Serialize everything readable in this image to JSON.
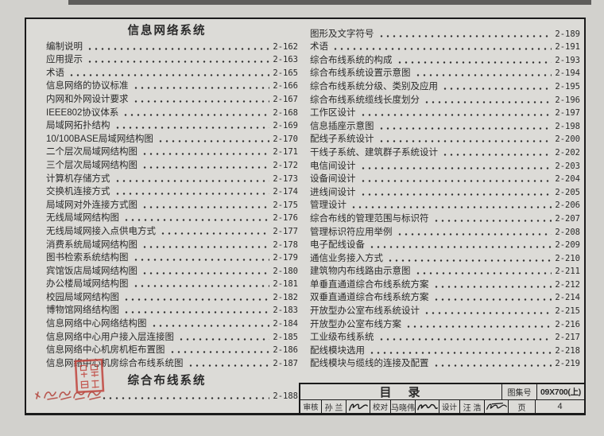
{
  "colors": {
    "ink": "#2a2a2a",
    "paper": "#dcdbd7",
    "margin": "#d2d1cd",
    "seal_red": "#c0453e",
    "frame": "#1b1b1b"
  },
  "left_column": {
    "sections": [
      {
        "header": "信息网络系统",
        "entries": [
          {
            "label": "编制说明",
            "page": "2-162"
          },
          {
            "label": "应用提示",
            "page": "2-163"
          },
          {
            "label": "术语",
            "page": "2-165"
          },
          {
            "label": "信息网络的协议标准",
            "page": "2-166"
          },
          {
            "label": "内网和外网设计要求",
            "page": "2-167"
          },
          {
            "label": "IEEE802协议体系",
            "page": "2-168"
          },
          {
            "label": "局域网拓扑结构",
            "page": "2-169"
          },
          {
            "label": "10/100BASE局域网结构图",
            "page": "2-170"
          },
          {
            "label": "二个层次局域网结构图",
            "page": "2-171"
          },
          {
            "label": "三个层次局域网结构图",
            "page": "2-172"
          },
          {
            "label": "计算机存储方式",
            "page": "2-173"
          },
          {
            "label": "交换机连接方式",
            "page": "2-174"
          },
          {
            "label": "局域网对外连接方式图",
            "page": "2-175"
          },
          {
            "label": "无线局域网结构图",
            "page": "2-176"
          },
          {
            "label": "无线局域网接入点供电方式",
            "page": "2-177"
          },
          {
            "label": "消费系统局域网结构图",
            "page": "2-178"
          },
          {
            "label": "图书检索系统结构图",
            "page": "2-179"
          },
          {
            "label": "宾馆饭店局域网结构图",
            "page": "2-180"
          },
          {
            "label": "办公楼局域网结构图",
            "page": "2-181"
          },
          {
            "label": "校园局域网结构图",
            "page": "2-182"
          },
          {
            "label": "博物馆网络结构图",
            "page": "2-183"
          },
          {
            "label": "信息网络中心网络结构图",
            "page": "2-184"
          },
          {
            "label": "信息网络中心用户接入层连接图",
            "page": "2-185"
          },
          {
            "label": "信息网络中心机房机柜布置图",
            "page": "2-186"
          },
          {
            "label": "信息网络中心机房综合布线系统图",
            "page": "2-187"
          }
        ]
      },
      {
        "header": "综合布线系统",
        "entries": [
          {
            "label": "",
            "page": "2-188",
            "stamped": true
          }
        ]
      }
    ]
  },
  "right_column": {
    "entries": [
      {
        "label": "图形及文字符号",
        "page": "2-189"
      },
      {
        "label": "术语",
        "page": "2-191"
      },
      {
        "label": "综合布线系统的构成",
        "page": "2-193"
      },
      {
        "label": "综合布线系统设置示意图",
        "page": "2-194"
      },
      {
        "label": "综合布线系统分级、类别及应用",
        "page": "2-195"
      },
      {
        "label": "综合布线系统缆线长度划分",
        "page": "2-196"
      },
      {
        "label": "工作区设计",
        "page": "2-197"
      },
      {
        "label": "信息插座示意图",
        "page": "2-198"
      },
      {
        "label": "配线子系统设计",
        "page": "2-200"
      },
      {
        "label": "干线子系统、建筑群子系统设计",
        "page": "2-202"
      },
      {
        "label": "电信间设计",
        "page": "2-203"
      },
      {
        "label": "设备间设计",
        "page": "2-204"
      },
      {
        "label": "进线间设计",
        "page": "2-205"
      },
      {
        "label": "管理设计",
        "page": "2-206"
      },
      {
        "label": "综合布线的管理范围与标识符",
        "page": "2-207"
      },
      {
        "label": "管理标识符应用举例",
        "page": "2-208"
      },
      {
        "label": "电子配线设备",
        "page": "2-209"
      },
      {
        "label": "通信业务接入方式",
        "page": "2-210"
      },
      {
        "label": "建筑物内布线路由示意图",
        "page": "2-211"
      },
      {
        "label": "单垂直通道综合布线系统方案",
        "page": "2-212"
      },
      {
        "label": "双垂直通道综合布线系统方案",
        "page": "2-214"
      },
      {
        "label": "开放型办公室布线系统设计",
        "page": "2-215"
      },
      {
        "label": "开放型办公室布线方案",
        "page": "2-216"
      },
      {
        "label": "工业级布线系统",
        "page": "2-217"
      },
      {
        "label": "配线模块选用",
        "page": "2-218"
      },
      {
        "label": "配线模块与缆线的连接及配置",
        "page": "2-219"
      }
    ]
  },
  "title_block": {
    "title": "目　录",
    "atlas_no_label": "图集号",
    "atlas_no": "09X700(上)",
    "page_label": "页",
    "page_no": "4",
    "credits": [
      {
        "role": "审核",
        "name": "孙 兰"
      },
      {
        "role": "校对",
        "name": "马晓伟"
      },
      {
        "role": "设计",
        "name": "汪 浩"
      }
    ]
  }
}
